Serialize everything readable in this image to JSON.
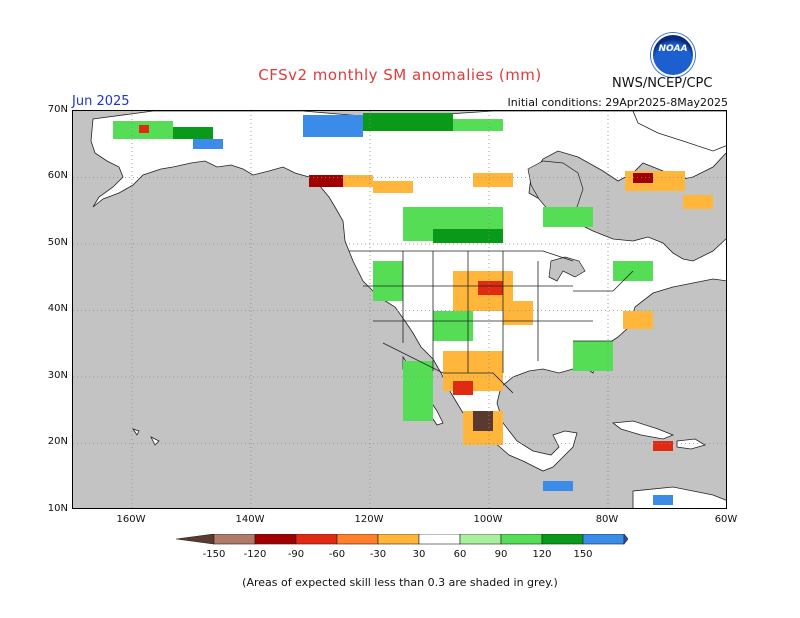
{
  "header": {
    "title": "CFSv2 monthly SM anomalies (mm)",
    "agency": "NWS/NCEP/CPC",
    "logo_text": "NOAA",
    "month": "Jun 2025",
    "initial_conditions": "Initial conditions: 29Apr2025-8May2025"
  },
  "axes": {
    "lat_labels": [
      "70N",
      "60N",
      "50N",
      "40N",
      "30N",
      "20N",
      "10N"
    ],
    "lon_labels": [
      "160W",
      "140W",
      "120W",
      "100W",
      "80W",
      "60W"
    ]
  },
  "legend": {
    "ticks": [
      "-150",
      "-120",
      "-90",
      "-60",
      "-30",
      "30",
      "60",
      "90",
      "120",
      "150"
    ],
    "colors": [
      "#5a3a2e",
      "#b07a6a",
      "#a00000",
      "#e02b12",
      "#ff7f2a",
      "#ffb63b",
      "#ffffff",
      "#a8f0a0",
      "#55dd55",
      "#0a9a1a",
      "#3a8ce8",
      "#1f4fbf"
    ]
  },
  "colors": {
    "land": "#ffffff",
    "ocean_low_skill": "#c3c3c3",
    "title": "#e23a3a",
    "month": "#2233cc"
  },
  "footer": "(Areas of expected skill less than 0.3 are shaded in grey.)"
}
